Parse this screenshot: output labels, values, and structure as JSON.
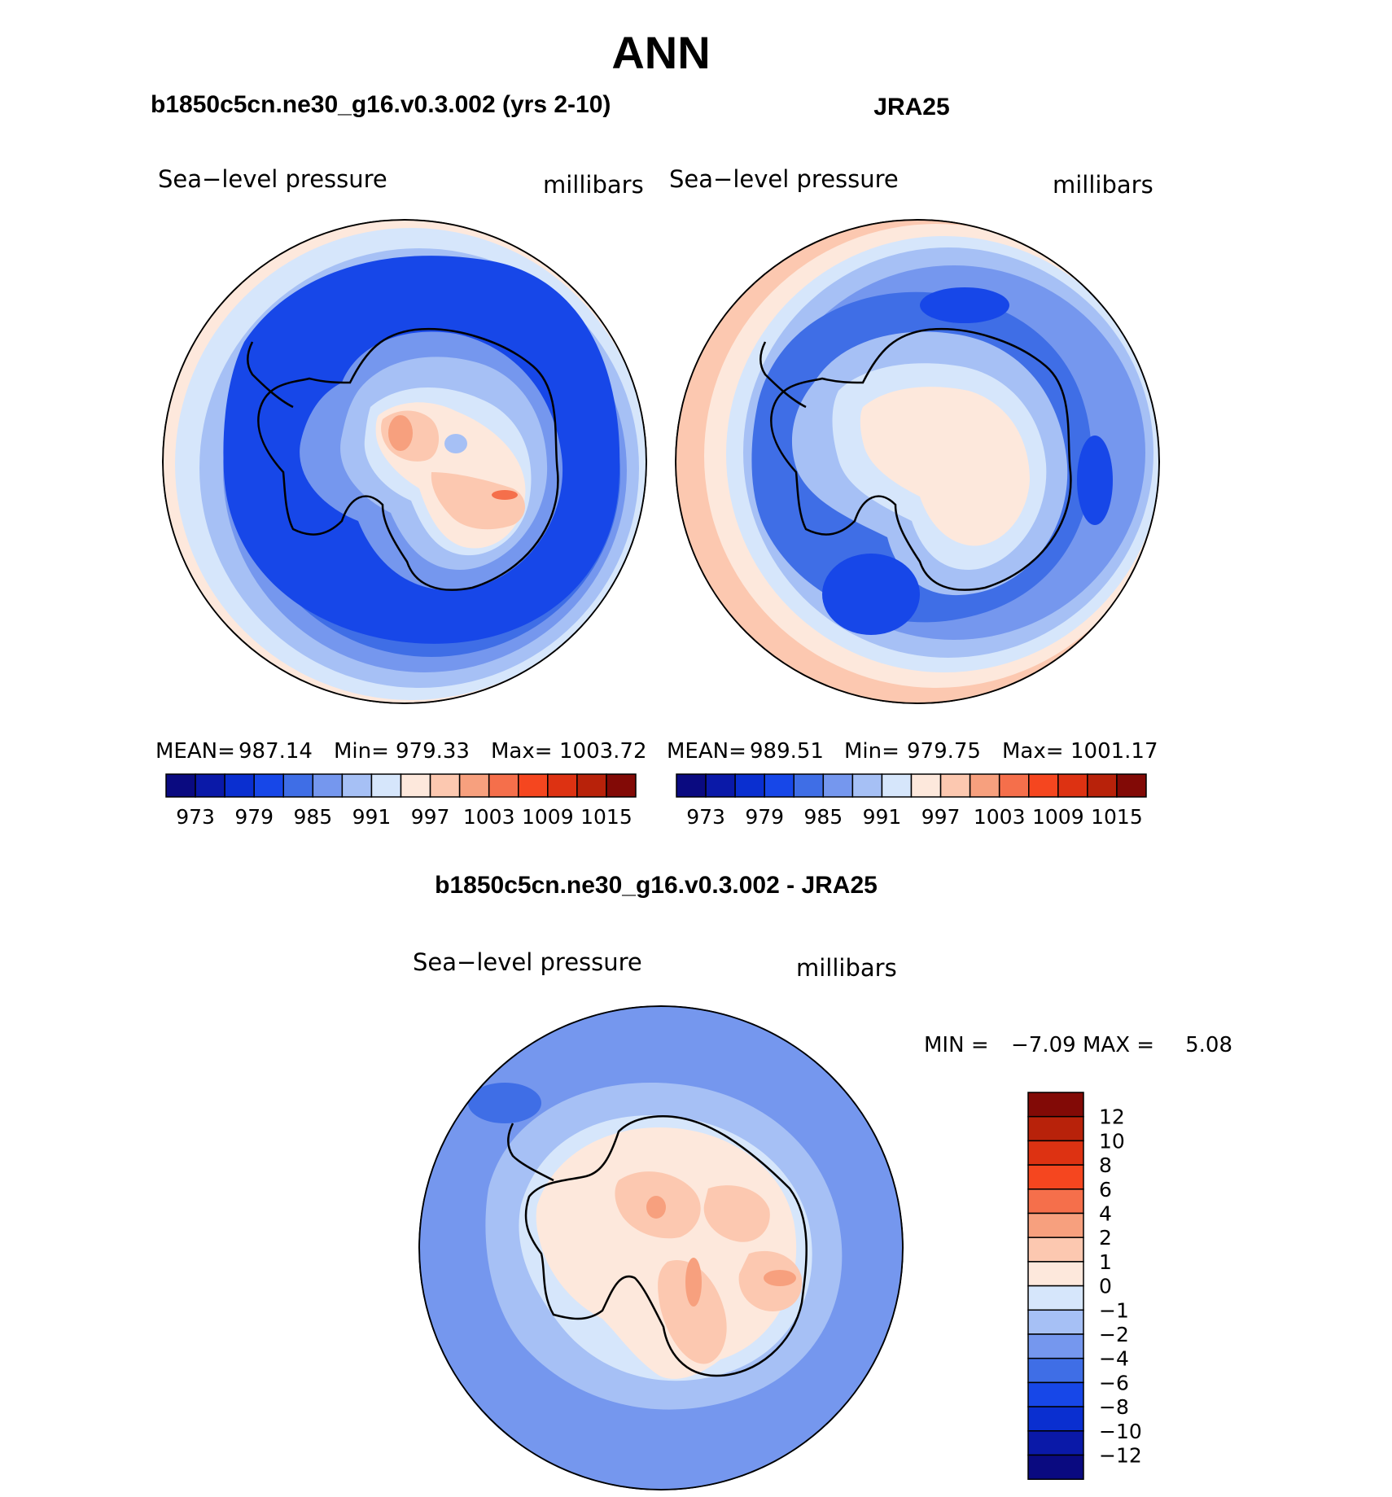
{
  "title": "ANN",
  "panels": {
    "model": {
      "case_title": "b1850c5cn.ne30_g16.v0.3.002 (yrs 2-10)",
      "variable": "Sea−level pressure",
      "units": "millibars",
      "stats": {
        "mean_label": "MEAN=",
        "mean": "987.14",
        "min_label": "Min=",
        "min": "979.33",
        "max_label": "Max=",
        "max": "1003.72"
      }
    },
    "obs": {
      "case_title": "JRA25",
      "variable": "Sea−level pressure",
      "units": "millibars",
      "stats": {
        "mean_label": "MEAN=",
        "mean": "989.51",
        "min_label": "Min=",
        "min": "979.75",
        "max_label": "Max=",
        "max": "1001.17"
      }
    },
    "diff": {
      "case_title": "b1850c5cn.ne30_g16.v0.3.002 - JRA25",
      "variable": "Sea−level pressure",
      "units": "millibars",
      "stats": {
        "min_label": "MIN =",
        "min": "−7.09",
        "max_label": "MAX =",
        "max": "5.08"
      }
    }
  },
  "colorbars": {
    "absolute": {
      "colors": [
        "#0a0a80",
        "#0a19a8",
        "#0a2fd0",
        "#1747e8",
        "#3f6ee6",
        "#7597ee",
        "#a6c0f5",
        "#d6e6fb",
        "#fde8dc",
        "#fcc8b0",
        "#f7a07e",
        "#f56f4b",
        "#f5461f",
        "#dd3212",
        "#b8220a",
        "#820a06"
      ],
      "tick_labels": [
        "973",
        "979",
        "985",
        "991",
        "997",
        "1003",
        "1009",
        "1015"
      ]
    },
    "difference": {
      "colors": [
        "#0a0a80",
        "#0a19a8",
        "#0a2fd0",
        "#1747e8",
        "#3f6ee6",
        "#7597ee",
        "#a6c0f5",
        "#d6e6fb",
        "#fde8dc",
        "#fcc8b0",
        "#f7a07e",
        "#f56f4b",
        "#f5461f",
        "#dd3212",
        "#b8220a",
        "#820a06"
      ],
      "tick_labels": [
        "12",
        "10",
        "8",
        "6",
        "4",
        "2",
        "1",
        "0",
        "−1",
        "−2",
        "−4",
        "−6",
        "−8",
        "−10",
        "−12"
      ]
    }
  }
}
